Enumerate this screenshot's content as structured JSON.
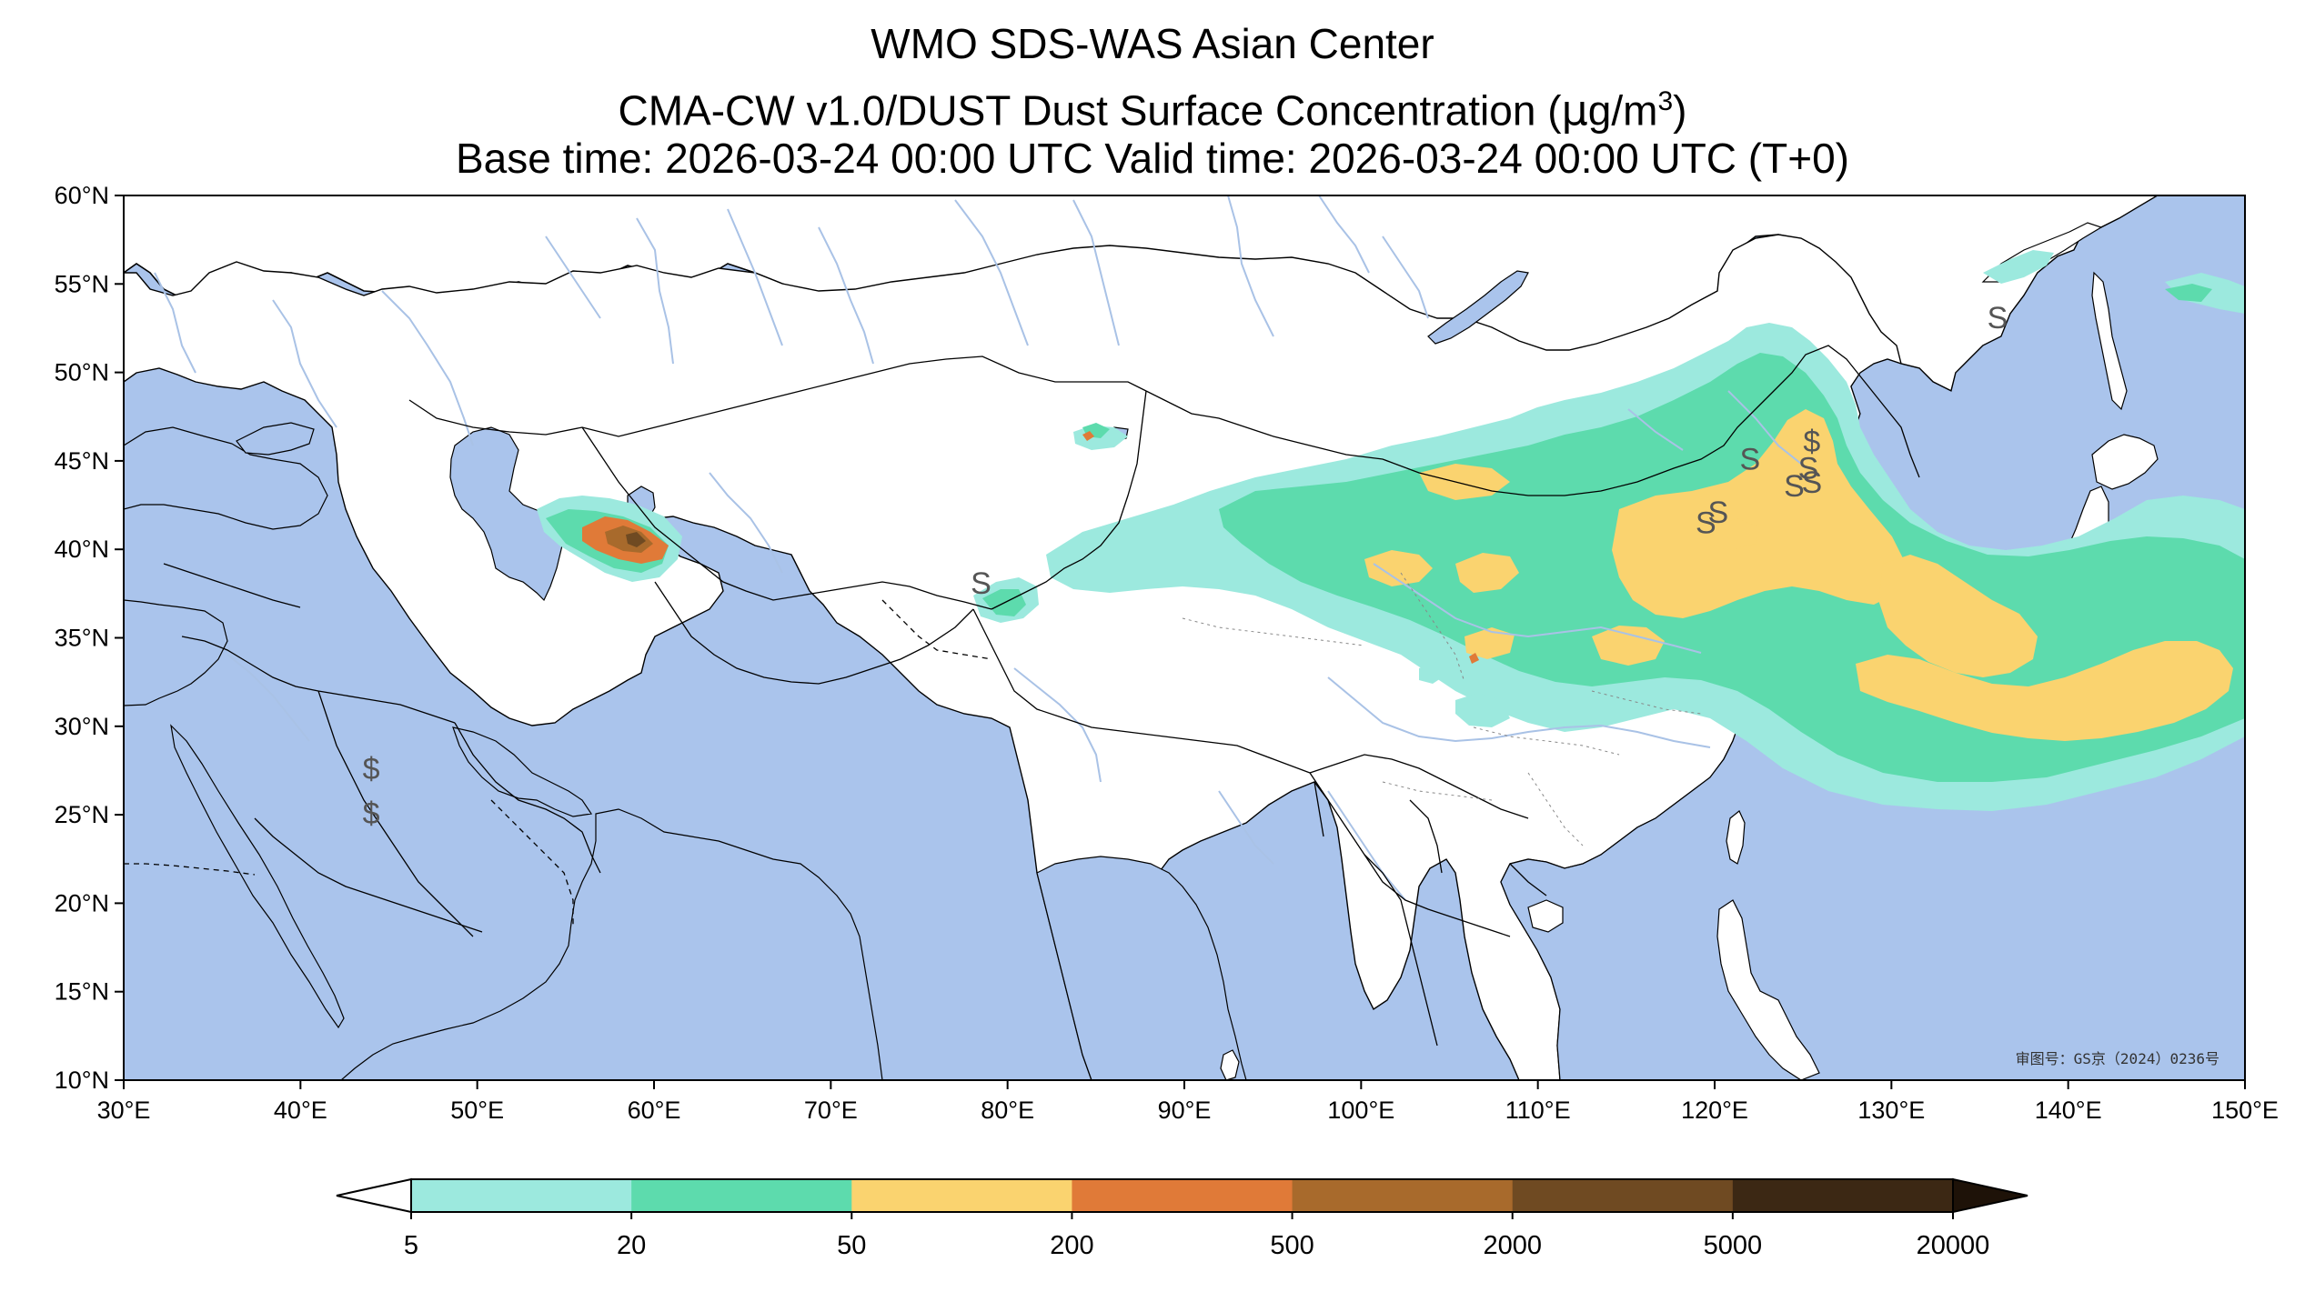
{
  "title": {
    "line1": "WMO SDS-WAS Asian Center",
    "line2_prefix": "CMA-CW v1.0/DUST Dust Surface Concentration (",
    "line2_unit_mu": "μ",
    "line2_unit_g": "g/m",
    "line2_unit_sup": "3",
    "line2_suffix": ")",
    "line3": "Base time: 2026-03-24 00:00 UTC Valid time: 2026-03-24 00:00 UTC (T+0)"
  },
  "map": {
    "lon_range": [
      30,
      150
    ],
    "lat_range": [
      10,
      60
    ],
    "x_ticks": [
      {
        "lon": 30,
        "label": "30°E"
      },
      {
        "lon": 40,
        "label": "40°E"
      },
      {
        "lon": 50,
        "label": "50°E"
      },
      {
        "lon": 60,
        "label": "60°E"
      },
      {
        "lon": 70,
        "label": "70°E"
      },
      {
        "lon": 80,
        "label": "80°E"
      },
      {
        "lon": 90,
        "label": "90°E"
      },
      {
        "lon": 100,
        "label": "100°E"
      },
      {
        "lon": 110,
        "label": "110°E"
      },
      {
        "lon": 120,
        "label": "120°E"
      },
      {
        "lon": 130,
        "label": "130°E"
      },
      {
        "lon": 140,
        "label": "140°E"
      },
      {
        "lon": 150,
        "label": "150°E"
      }
    ],
    "y_ticks": [
      {
        "lat": 60,
        "label": "60°N"
      },
      {
        "lat": 55,
        "label": "55°N"
      },
      {
        "lat": 50,
        "label": "50°N"
      },
      {
        "lat": 45,
        "label": "45°N"
      },
      {
        "lat": 40,
        "label": "40°N"
      },
      {
        "lat": 35,
        "label": "35°N"
      },
      {
        "lat": 30,
        "label": "30°N"
      },
      {
        "lat": 25,
        "label": "25°N"
      },
      {
        "lat": 20,
        "label": "20°N"
      },
      {
        "lat": 15,
        "label": "15°N"
      },
      {
        "lat": 10,
        "label": "10°N"
      }
    ],
    "approval_number": "审图号：GS京（2024）0236号",
    "ocean_color": "#aac4ec",
    "land_color": "#ffffff",
    "river_color": "#a9c2e6",
    "dust_markers": [
      {
        "symbol": "$",
        "lon": 44,
        "lat": 27
      },
      {
        "symbol": "$",
        "lon": 44,
        "lat": 24.5
      },
      {
        "symbol": "S",
        "lon": 78.5,
        "lat": 37.5
      },
      {
        "symbol": "$",
        "lon": 125.5,
        "lat": 45.5
      },
      {
        "symbol": "S",
        "lon": 122,
        "lat": 44.5
      },
      {
        "symbol": "S",
        "lon": 125.3,
        "lat": 44
      },
      {
        "symbol": "S",
        "lon": 124.5,
        "lat": 43
      },
      {
        "symbol": "S",
        "lon": 125.5,
        "lat": 43.2
      },
      {
        "symbol": "S",
        "lon": 120.2,
        "lat": 41.5
      },
      {
        "symbol": "S",
        "lon": 119.5,
        "lat": 40.9
      },
      {
        "symbol": "S",
        "lon": 136,
        "lat": 52.5
      }
    ]
  },
  "colorbar": {
    "colors": [
      "#9ce9de",
      "#5ddbad",
      "#fad36f",
      "#e07a38",
      "#a86a2c",
      "#6f4a22",
      "#3c2814"
    ],
    "under_color": "#ffffff",
    "over_color": "#1e1208",
    "boundaries": [
      "5",
      "20",
      "50",
      "200",
      "500",
      "2000",
      "5000",
      "20000"
    ]
  }
}
